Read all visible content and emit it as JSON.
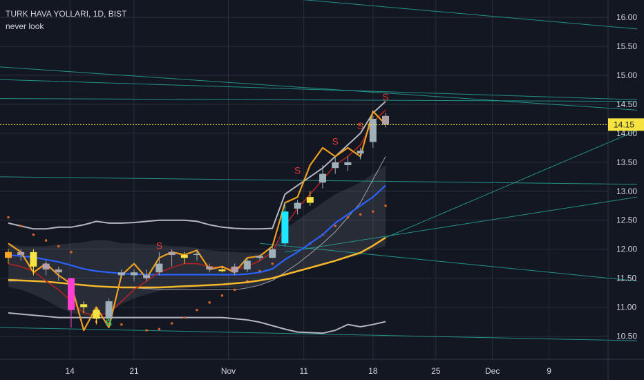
{
  "header": {
    "symbol_line": "TURK HAVA YOLLARI, 1D, BIST",
    "indicator_name": "never look"
  },
  "colors": {
    "background": "#131722",
    "grid": "#2a2e39",
    "axis_text": "#d1d4dc",
    "up_candle": "#9fb0b8",
    "down_candle": "#b2a0a8",
    "price_line": "#f5e342",
    "orange_line": "#f0a020",
    "blue_ma": "#2962ff",
    "yellow_ma": "#f5b82a",
    "red_ma": "#b22222",
    "band": "#d1d4dc",
    "trendline": "#26a69a",
    "sell_signal": "#e53935",
    "buy_signal": "#26d07c",
    "dots": "#d8602a"
  },
  "chart_data": {
    "type": "candlestick",
    "title": "TURK HAVA YOLLARI, 1D, BIST",
    "subtitle": "never look",
    "xlabel": "",
    "ylabel": "",
    "x_ticks": [
      "14",
      "21",
      "Nov",
      "11",
      "18",
      "25",
      "Dec",
      "9"
    ],
    "y_ticks": [
      "16.00",
      "15.50",
      "15.00",
      "14.50",
      "14.00",
      "13.50",
      "13.00",
      "12.50",
      "12.00",
      "11.50",
      "11.00",
      "10.50"
    ],
    "ylim": [
      10.1,
      16.3
    ],
    "grid": true,
    "current_price": "14.15",
    "candles": [
      {
        "o": 11.85,
        "h": 12.0,
        "l": 11.75,
        "c": 11.95
      },
      {
        "o": 11.95,
        "h": 12.0,
        "l": 11.8,
        "c": 11.9
      },
      {
        "o": 11.95,
        "h": 12.0,
        "l": 11.55,
        "c": 11.7
      },
      {
        "o": 11.75,
        "h": 11.8,
        "l": 11.55,
        "c": 11.65
      },
      {
        "o": 11.65,
        "h": 11.7,
        "l": 11.45,
        "c": 11.6
      },
      {
        "o": 11.5,
        "h": 11.5,
        "l": 10.65,
        "c": 10.95
      },
      {
        "o": 11.05,
        "h": 11.1,
        "l": 10.9,
        "c": 11.0
      },
      {
        "o": 10.95,
        "h": 10.98,
        "l": 10.7,
        "c": 10.8
      },
      {
        "o": 10.8,
        "h": 11.15,
        "l": 10.75,
        "c": 11.1
      },
      {
        "o": 11.55,
        "h": 11.65,
        "l": 11.5,
        "c": 11.6
      },
      {
        "o": 11.55,
        "h": 11.65,
        "l": 11.45,
        "c": 11.6
      },
      {
        "o": 11.5,
        "h": 11.65,
        "l": 11.45,
        "c": 11.55
      },
      {
        "o": 11.6,
        "h": 11.95,
        "l": 11.55,
        "c": 11.75
      },
      {
        "o": 11.9,
        "h": 12.0,
        "l": 11.7,
        "c": 11.95
      },
      {
        "o": 11.85,
        "h": 11.95,
        "l": 11.75,
        "c": 11.9
      },
      {
        "o": 11.9,
        "h": 11.98,
        "l": 11.8,
        "c": 11.92
      },
      {
        "o": 11.65,
        "h": 11.75,
        "l": 11.6,
        "c": 11.7
      },
      {
        "o": 11.65,
        "h": 11.7,
        "l": 11.6,
        "c": 11.62
      },
      {
        "o": 11.7,
        "h": 11.75,
        "l": 11.55,
        "c": 11.6
      },
      {
        "o": 11.65,
        "h": 11.85,
        "l": 11.6,
        "c": 11.8
      },
      {
        "o": 11.85,
        "h": 11.9,
        "l": 11.8,
        "c": 11.88
      },
      {
        "o": 11.85,
        "h": 12.05,
        "l": 11.85,
        "c": 12.0
      },
      {
        "o": 12.1,
        "h": 12.8,
        "l": 12.05,
        "c": 12.65
      },
      {
        "o": 12.7,
        "h": 12.85,
        "l": 12.6,
        "c": 12.8
      },
      {
        "o": 12.8,
        "h": 13.0,
        "l": 12.75,
        "c": 12.9
      },
      {
        "o": 13.15,
        "h": 13.45,
        "l": 13.05,
        "c": 13.3
      },
      {
        "o": 13.4,
        "h": 13.6,
        "l": 13.3,
        "c": 13.5
      },
      {
        "o": 13.5,
        "h": 13.6,
        "l": 13.35,
        "c": 13.45
      },
      {
        "o": 13.7,
        "h": 13.75,
        "l": 13.55,
        "c": 13.65
      },
      {
        "o": 13.85,
        "h": 14.3,
        "l": 13.75,
        "c": 14.25
      },
      {
        "o": 14.3,
        "h": 14.35,
        "l": 14.1,
        "c": 14.15
      }
    ],
    "candle_colors": [
      "#f5a623",
      "#b2a0a8",
      "#f5e342",
      "#b2a0a8",
      "#b2a0a8",
      "#ff3fd0",
      "#f5e342",
      "#f5e342",
      "#9fb0b8",
      "#9fb0b8",
      "#9fb0b8",
      "#9fb0b8",
      "#9fb0b8",
      "#b2a0a8",
      "#f5e342",
      "#9fb0b8",
      "#b2a0a8",
      "#f5e342",
      "#b2a0a8",
      "#9fb0b8",
      "#9fb0b8",
      "#9fb0b8",
      "#1ee8ff",
      "#9fb0b8",
      "#f5e342",
      "#9fb0b8",
      "#9fb0b8",
      "#9fb0b8",
      "#9fb0b8",
      "#9fb0b8",
      "#b2a0a8"
    ],
    "series": [
      {
        "key": "orange_line",
        "values": [
          12.1,
          11.95,
          11.6,
          11.75,
          11.55,
          11.4,
          10.6,
          11.0,
          10.65,
          11.55,
          11.75,
          11.5,
          11.85,
          11.95,
          11.9,
          11.98,
          11.65,
          11.7,
          11.6,
          11.85,
          11.88,
          12.05,
          12.8,
          12.9,
          13.45,
          13.75,
          13.6,
          13.75,
          13.6,
          14.38,
          14.15
        ]
      },
      {
        "key": "red_ma",
        "values": [
          11.75,
          11.7,
          11.62,
          11.45,
          11.3,
          11.1,
          10.9,
          10.85,
          10.9,
          11.1,
          11.3,
          11.45,
          11.6,
          11.68,
          11.75,
          11.75,
          11.7,
          11.68,
          11.65,
          11.7,
          11.8,
          11.95,
          12.4,
          12.7,
          12.95,
          13.2,
          13.45,
          13.6,
          13.8,
          14.2,
          14.4
        ]
      },
      {
        "key": "blue_ma",
        "values": [
          11.9,
          11.88,
          11.86,
          11.82,
          11.78,
          11.72,
          11.66,
          11.62,
          11.6,
          11.58,
          11.57,
          11.56,
          11.56,
          11.56,
          11.56,
          11.56,
          11.56,
          11.56,
          11.56,
          11.57,
          11.6,
          11.66,
          11.82,
          11.95,
          12.1,
          12.25,
          12.45,
          12.6,
          12.75,
          12.9,
          13.1
        ]
      },
      {
        "key": "yellow_ma",
        "values": [
          11.47,
          11.46,
          11.45,
          11.44,
          11.42,
          11.4,
          11.38,
          11.36,
          11.35,
          11.34,
          11.34,
          11.34,
          11.34,
          11.35,
          11.36,
          11.37,
          11.38,
          11.39,
          11.41,
          11.43,
          11.46,
          11.5,
          11.56,
          11.62,
          11.68,
          11.74,
          11.8,
          11.87,
          11.94,
          12.06,
          12.2
        ]
      },
      {
        "key": "band_upper",
        "values": [
          12.45,
          12.4,
          12.35,
          12.35,
          12.38,
          12.38,
          12.42,
          12.48,
          12.45,
          12.45,
          12.46,
          12.48,
          12.5,
          12.5,
          12.5,
          12.48,
          12.42,
          12.38,
          12.36,
          12.35,
          12.35,
          12.36,
          12.95,
          13.1,
          13.25,
          13.4,
          13.6,
          13.8,
          14.0,
          14.35,
          14.55
        ]
      },
      {
        "key": "band_lower",
        "values": [
          10.9,
          10.88,
          10.86,
          10.84,
          10.82,
          10.82,
          10.82,
          10.82,
          10.82,
          10.82,
          10.82,
          10.82,
          10.82,
          10.82,
          10.82,
          10.82,
          10.82,
          10.82,
          10.8,
          10.78,
          10.74,
          10.68,
          10.62,
          10.57,
          10.56,
          10.55,
          10.6,
          10.7,
          10.66,
          10.7,
          10.75
        ]
      },
      {
        "key": "band_mid",
        "values": [
          11.45,
          11.45,
          11.45,
          11.44,
          11.42,
          11.4,
          11.38,
          11.36,
          11.35,
          11.34,
          11.33,
          11.32,
          11.31,
          11.3,
          11.3,
          11.3,
          11.3,
          11.3,
          11.3,
          11.33,
          11.38,
          11.46,
          11.6,
          11.75,
          11.92,
          12.1,
          12.3,
          12.55,
          12.8,
          13.2,
          13.6
        ]
      }
    ],
    "cloud": {
      "upper": [
        12.1,
        12.05,
        12.05,
        12.05,
        12.08,
        12.1,
        12.12,
        12.16,
        12.15,
        12.1,
        12.1,
        12.08,
        12.08,
        12.05,
        12.05,
        12.02,
        11.98,
        11.96,
        11.95,
        11.94,
        11.94,
        11.95,
        12.35,
        12.5,
        12.65,
        12.8,
        12.95,
        13.05,
        13.15,
        13.3,
        13.45
      ],
      "lower": [
        11.35,
        11.3,
        11.22,
        11.12,
        11.0,
        10.9,
        10.85,
        10.85,
        10.9,
        11.05,
        11.15,
        11.22,
        11.28,
        11.3,
        11.32,
        11.33,
        11.33,
        11.33,
        11.33,
        11.34,
        11.38,
        11.45,
        11.55,
        11.62,
        11.7,
        11.75,
        11.8,
        11.85,
        11.9,
        12.0,
        12.05
      ]
    },
    "dots": [
      {
        "i": 0,
        "v": 12.55
      },
      {
        "i": 1,
        "v": 12.4
      },
      {
        "i": 2,
        "v": 12.25
      },
      {
        "i": 3,
        "v": 12.15
      },
      {
        "i": 4,
        "v": 12.05
      },
      {
        "i": 5,
        "v": 11.95
      },
      {
        "i": 7,
        "v": 10.75
      },
      {
        "i": 8,
        "v": 10.72
      },
      {
        "i": 9,
        "v": 10.7
      },
      {
        "i": 11,
        "v": 10.6
      },
      {
        "i": 12,
        "v": 10.62
      },
      {
        "i": 13,
        "v": 10.72
      },
      {
        "i": 14,
        "v": 10.82
      },
      {
        "i": 15,
        "v": 10.95
      },
      {
        "i": 16,
        "v": 11.08
      },
      {
        "i": 17,
        "v": 11.2
      },
      {
        "i": 18,
        "v": 11.3
      },
      {
        "i": 19,
        "v": 11.45
      },
      {
        "i": 20,
        "v": 11.62
      },
      {
        "i": 21,
        "v": 11.75
      },
      {
        "i": 24,
        "v": 12.1
      },
      {
        "i": 25,
        "v": 12.25
      },
      {
        "i": 26,
        "v": 12.4
      },
      {
        "i": 27,
        "v": 12.55
      },
      {
        "i": 28,
        "v": 12.6
      },
      {
        "i": 29,
        "v": 12.65
      },
      {
        "i": 30,
        "v": 12.75
      }
    ],
    "signals": [
      {
        "label": "S",
        "i": 12,
        "v": 12.0
      },
      {
        "label": "S",
        "i": 23,
        "v": 13.3
      },
      {
        "label": "S",
        "i": 26,
        "v": 13.8
      },
      {
        "label": "S",
        "i": 28,
        "v": 14.07
      },
      {
        "label": "S",
        "i": 30,
        "v": 14.57
      },
      {
        "label": "B",
        "i": 8,
        "v": 10.67
      }
    ],
    "trendlines": [
      {
        "x1i": 19.5,
        "v1": 16.38,
        "x2i": 50,
        "v2": 15.8
      },
      {
        "x1i": -1,
        "v1": 15.15,
        "x2i": 50,
        "v2": 14.4
      },
      {
        "x1i": -1,
        "v1": 14.93,
        "x2i": 50,
        "v2": 14.58
      },
      {
        "x1i": -1,
        "v1": 14.6,
        "x2i": 50,
        "v2": 14.55
      },
      {
        "x1i": -1,
        "v1": 13.25,
        "x2i": 50,
        "v2": 13.12
      },
      {
        "x1i": 20,
        "v1": 12.1,
        "x2i": 50,
        "v2": 11.45
      },
      {
        "x1i": 22,
        "v1": 11.95,
        "x2i": 50,
        "v2": 12.9
      },
      {
        "x1i": 30,
        "v1": 12.2,
        "x2i": 50,
        "v2": 14.05
      },
      {
        "x1i": -1,
        "v1": 10.65,
        "x2i": 50,
        "v2": 10.42
      }
    ]
  }
}
